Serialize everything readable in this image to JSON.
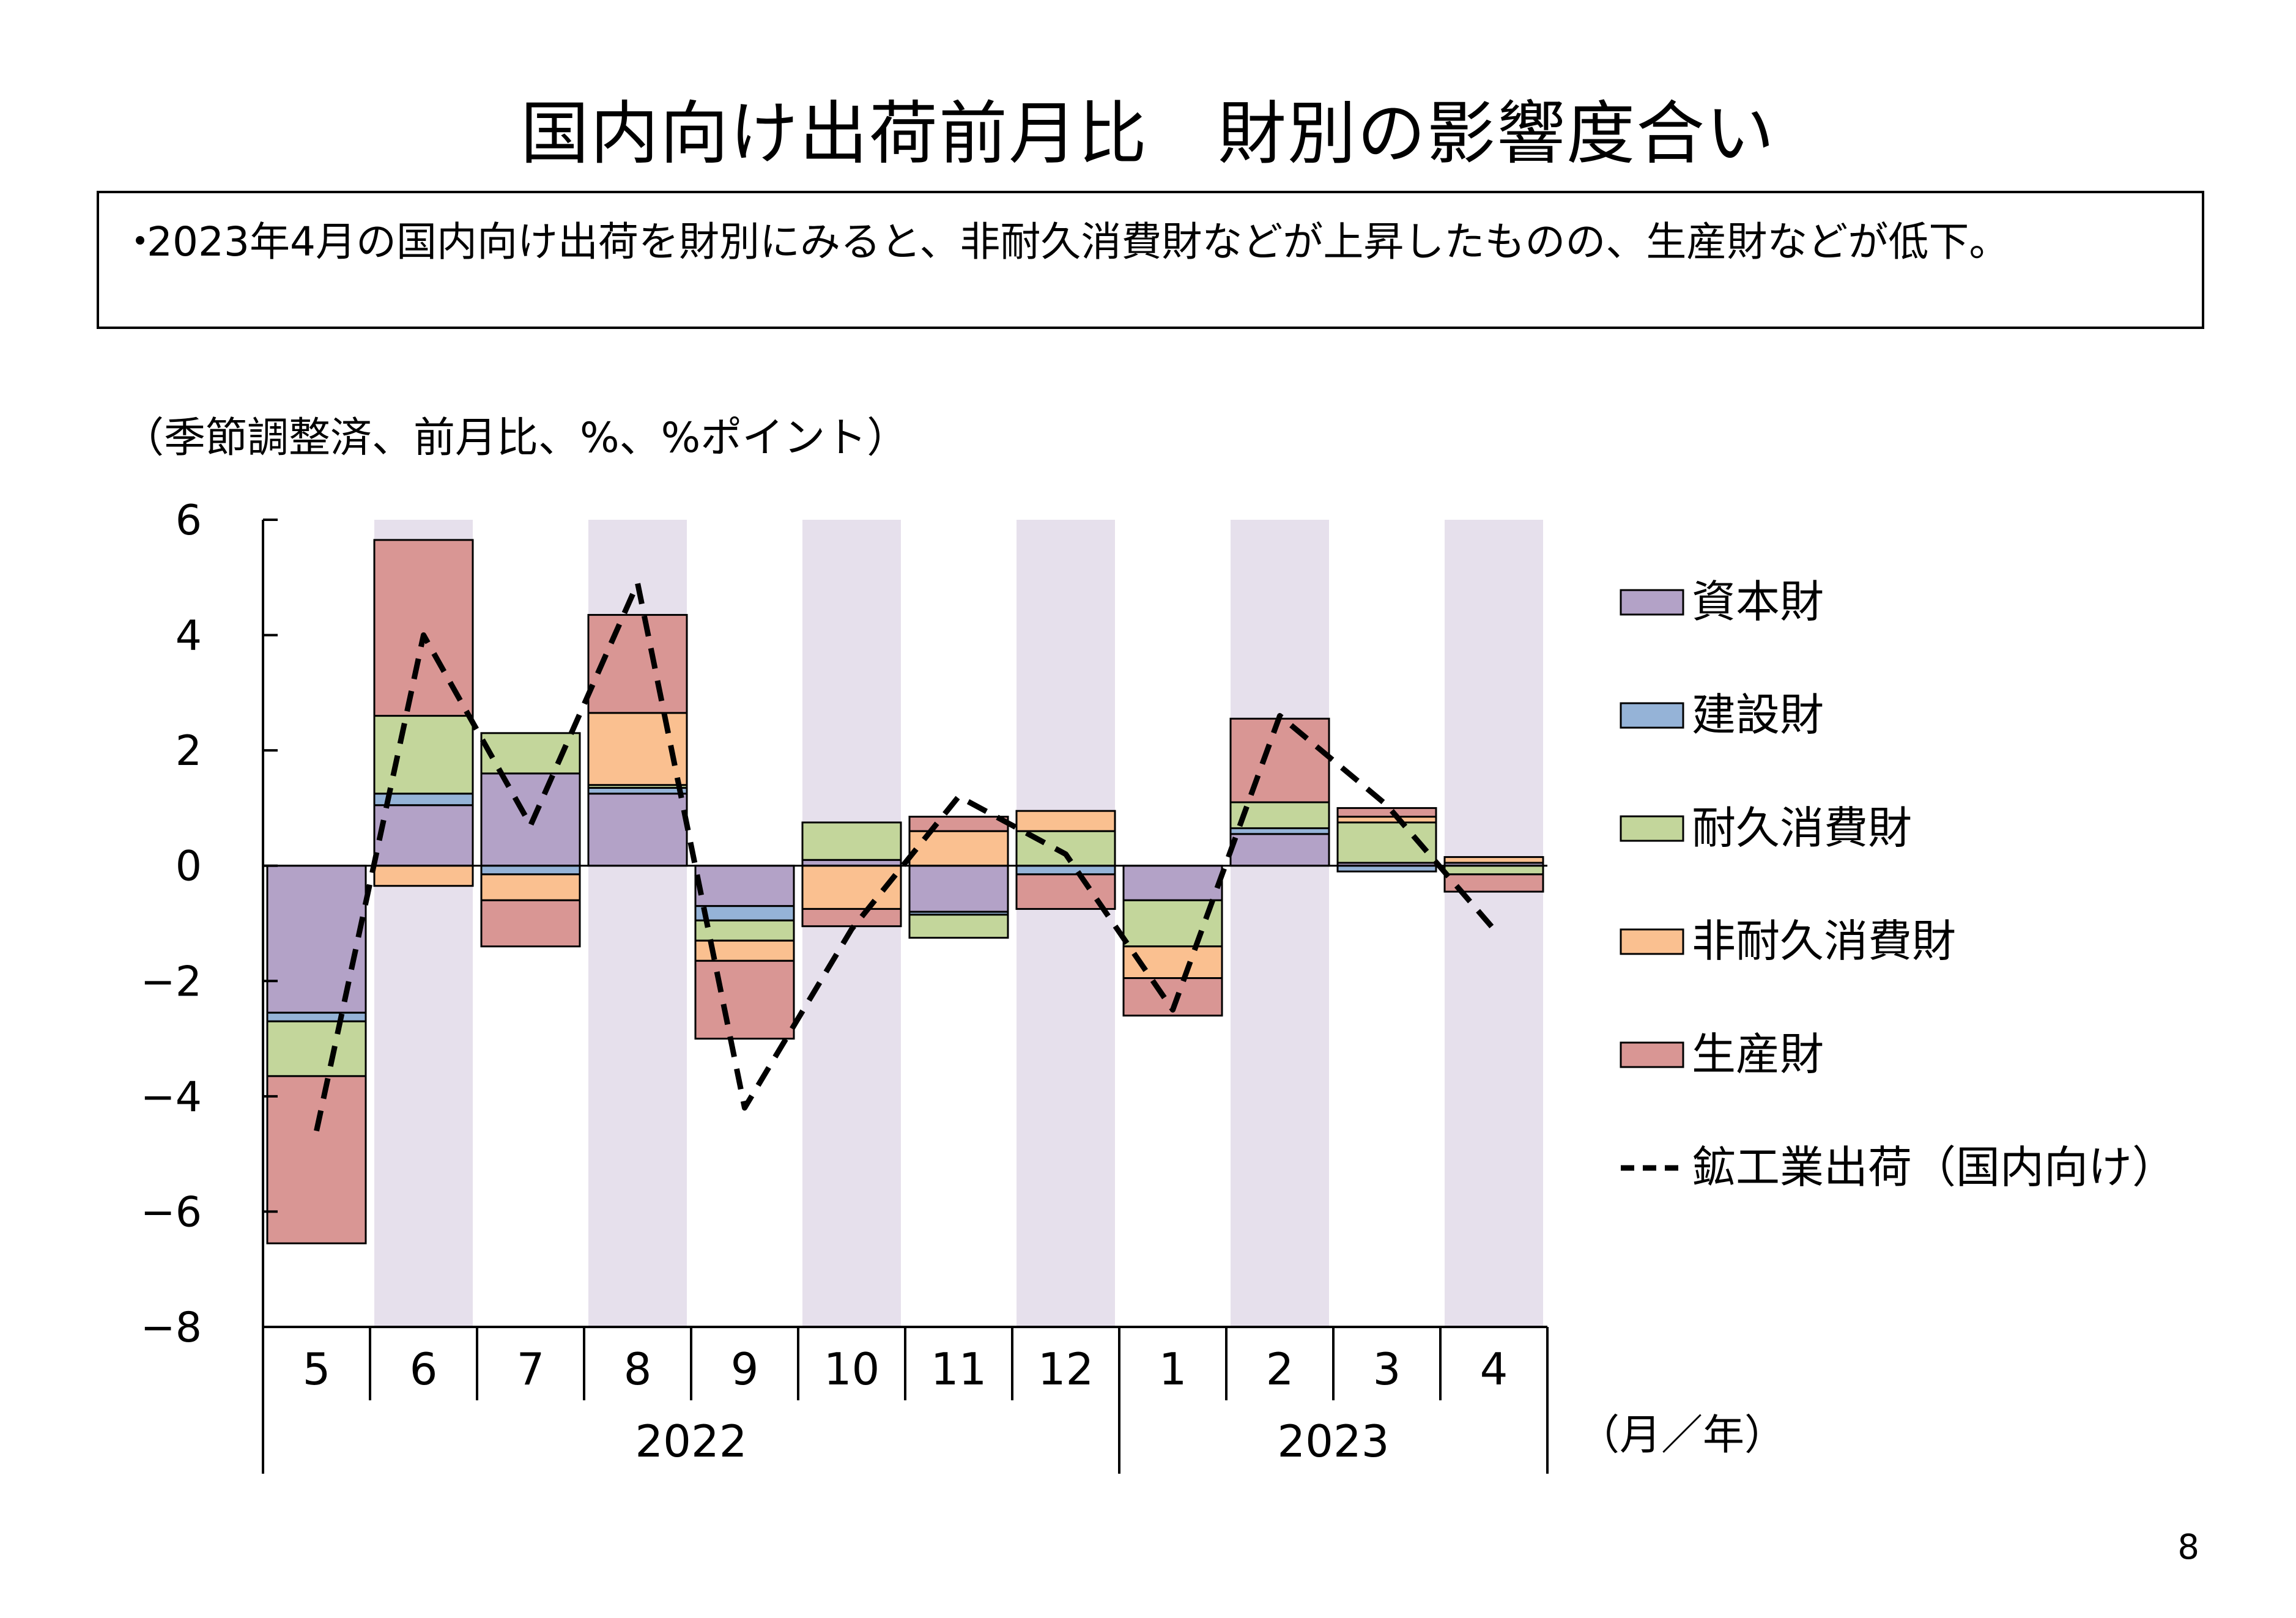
{
  "title": "国内向け出荷前月比　財別の影響度合い",
  "summary": {
    "bullet": "・",
    "text": "2023年4月の国内向け出荷を財別にみると、非耐久消費財などが上昇したものの、生産財などが低下。"
  },
  "unit_label": "（季節調整済、前月比、%、%ポイント）",
  "axis_unit_label": "（月／年）",
  "page_number": "8",
  "colors": {
    "capital": "#B3A2C7",
    "construction": "#95B3D7",
    "durable": "#C3D69B",
    "nondurable": "#FAC090",
    "production": "#D99694",
    "shade": "#E6E0EC",
    "line": "#000000"
  },
  "chart_data": {
    "type": "bar",
    "stacked": true,
    "title": "",
    "xlabel": "（月／年）",
    "ylabel": "（季節調整済、前月比、%、%ポイント）",
    "ylim": [
      -8,
      6
    ],
    "yticks": [
      6,
      4,
      2,
      0,
      -2,
      -4,
      -6,
      -8
    ],
    "ytick_labels": [
      "6",
      "4",
      "2",
      "0",
      "−2",
      "−4",
      "−6",
      "−8"
    ],
    "categories": [
      "5",
      "6",
      "7",
      "8",
      "9",
      "10",
      "11",
      "12",
      "1",
      "2",
      "3",
      "4"
    ],
    "year_groups": [
      {
        "label": "2022",
        "start": 0,
        "end": 7
      },
      {
        "label": "2023",
        "start": 8,
        "end": 11
      }
    ],
    "shaded_categories": [
      1,
      3,
      5,
      7,
      9,
      11
    ],
    "legend_position": "right",
    "series": [
      {
        "key": "capital",
        "name": "資本財",
        "color": "#B3A2C7",
        "values": [
          -2.55,
          1.05,
          1.6,
          1.25,
          -0.7,
          0.1,
          -0.8,
          0,
          -0.6,
          0.55,
          0.05,
          0.05
        ]
      },
      {
        "key": "construction",
        "name": "建設財",
        "color": "#95B3D7",
        "values": [
          -0.15,
          0.2,
          -0.15,
          0.1,
          -0.25,
          0,
          -0.05,
          -0.15,
          0,
          0.1,
          -0.1,
          0
        ]
      },
      {
        "key": "durable",
        "name": "耐久消費財",
        "color": "#C3D69B",
        "values": [
          -0.95,
          1.35,
          0.7,
          0.05,
          -0.35,
          0.65,
          -0.4,
          0.6,
          -0.8,
          0.45,
          0.7,
          -0.15
        ]
      },
      {
        "key": "nondurable",
        "name": "非耐久消費財",
        "color": "#FAC090",
        "values": [
          0,
          -0.35,
          -0.45,
          1.25,
          -0.35,
          -0.75,
          0.6,
          0.35,
          -0.55,
          0,
          0.1,
          0.1
        ]
      },
      {
        "key": "production",
        "name": "生産財",
        "color": "#D99694",
        "values": [
          -2.9,
          3.05,
          -0.8,
          1.7,
          -1.35,
          -0.3,
          0.25,
          -0.6,
          -0.65,
          1.45,
          0.15,
          -0.3
        ]
      }
    ],
    "line": {
      "name": "鉱工業出荷（国内向け）",
      "style": "dashed",
      "values": [
        -4.6,
        4.0,
        0.7,
        4.9,
        -4.2,
        -1.1,
        1.2,
        0.2,
        -2.5,
        2.6,
        1.05,
        -1.1
      ]
    }
  }
}
